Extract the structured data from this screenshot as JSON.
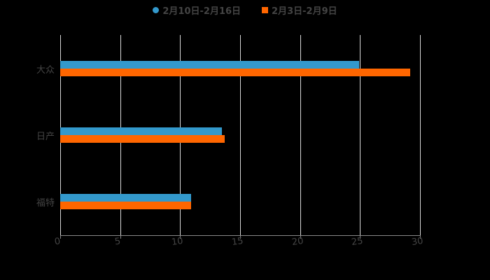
{
  "chart_data": {
    "type": "bar",
    "orientation": "horizontal",
    "title": "",
    "categories": [
      "大众",
      "日产",
      "福特"
    ],
    "series": [
      {
        "name": "2月10日-2月16日",
        "color": "#3399cc",
        "values": [
          24.9,
          13.5,
          10.9
        ]
      },
      {
        "name": "2月3日-2月9日",
        "color": "#ff6600",
        "values": [
          29.2,
          13.7,
          10.9
        ]
      }
    ],
    "xlabel": "",
    "ylabel": "",
    "xlim": [
      0,
      30
    ],
    "xticks": [
      "0",
      "5",
      "10",
      "15",
      "20",
      "25",
      "30"
    ],
    "grid": true,
    "legend_position": "top"
  },
  "legend": {
    "items": [
      {
        "label": "2月10日-2月16日",
        "color": "#3399cc",
        "shape": "circle"
      },
      {
        "label": "2月3日-2月9日",
        "color": "#ff6600",
        "shape": "square"
      }
    ]
  }
}
